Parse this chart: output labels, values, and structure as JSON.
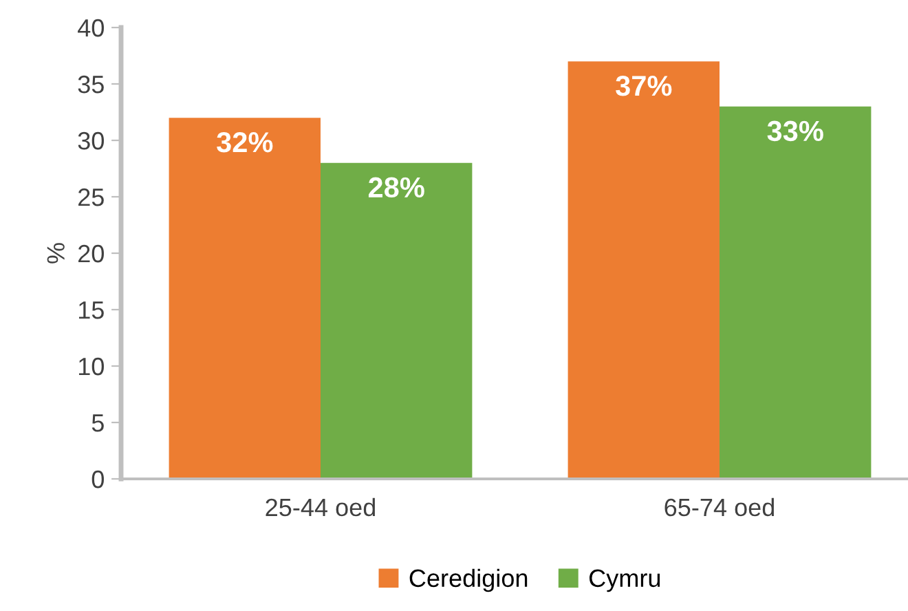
{
  "chart_data": {
    "type": "bar",
    "ylabel": "%",
    "categories": [
      "25-44 oed",
      "65-74 oed"
    ],
    "series": [
      {
        "name": "Ceredigion",
        "color": "#ed7d31",
        "values": [
          32,
          37
        ],
        "value_labels": [
          "32%",
          "37%"
        ]
      },
      {
        "name": "Cymru",
        "color": "#70ad47",
        "values": [
          28,
          33
        ],
        "value_labels": [
          "28%",
          "33%"
        ]
      }
    ],
    "ylim": [
      0,
      40
    ],
    "yticks": [
      0,
      5,
      10,
      15,
      20,
      25,
      30,
      35,
      40
    ],
    "grid": false,
    "legend": "bottom"
  }
}
